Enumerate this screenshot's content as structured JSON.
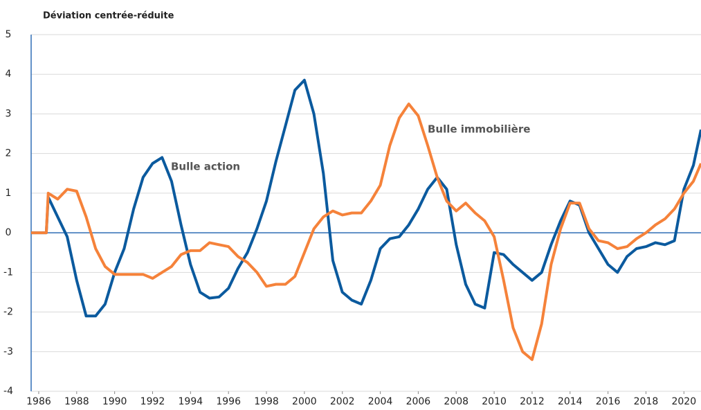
{
  "chart_data": {
    "type": "line",
    "title": "Déviation centrée-réduite",
    "annotations": [
      "Bulle action",
      "Bulle immobilière"
    ],
    "x": [
      1985.6,
      1986.4,
      1986.5,
      1987,
      1987.5,
      1988,
      1988.5,
      1989,
      1989.5,
      1990,
      1990.5,
      1991,
      1991.5,
      1992,
      1992.5,
      1993,
      1993.5,
      1994,
      1994.5,
      1995,
      1995.5,
      1996,
      1996.5,
      1997,
      1997.5,
      1998,
      1998.5,
      1999,
      1999.5,
      2000,
      2000.5,
      2001,
      2001.5,
      2002,
      2002.5,
      2003,
      2003.5,
      2004,
      2004.5,
      2005,
      2005.5,
      2006,
      2006.5,
      2007,
      2007.5,
      2008,
      2008.5,
      2009,
      2009.5,
      2010,
      2010.5,
      2011,
      2011.5,
      2012,
      2012.5,
      2013,
      2013.5,
      2014,
      2014.5,
      2015,
      2015.5,
      2016,
      2016.5,
      2017,
      2017.5,
      2018,
      2018.5,
      2019,
      2019.5,
      2020,
      2020.5,
      2020.9
    ],
    "series": [
      {
        "name": "Bulle action",
        "color": "#0b5a9e",
        "values": [
          0,
          0,
          0.9,
          0.4,
          -0.1,
          -1.2,
          -2.1,
          -2.1,
          -1.8,
          -1.0,
          -0.4,
          0.6,
          1.4,
          1.75,
          1.9,
          1.3,
          0.2,
          -0.8,
          -1.5,
          -1.65,
          -1.62,
          -1.4,
          -0.9,
          -0.5,
          0.1,
          0.8,
          1.8,
          2.7,
          3.6,
          3.85,
          3.0,
          1.5,
          -0.7,
          -1.5,
          -1.7,
          -1.8,
          -1.2,
          -0.4,
          -0.15,
          -0.1,
          0.2,
          0.6,
          1.1,
          1.4,
          1.1,
          -0.3,
          -1.3,
          -1.8,
          -1.9,
          -0.5,
          -0.55,
          -0.8,
          -1.0,
          -1.2,
          -1.0,
          -0.3,
          0.3,
          0.8,
          0.7,
          0.0,
          -0.4,
          -0.8,
          -1.0,
          -0.6,
          -0.4,
          -0.35,
          -0.25,
          -0.3,
          -0.2,
          1.1,
          1.7,
          2.6
        ]
      },
      {
        "name": "Bulle immobilière",
        "color": "#f5823a",
        "values": [
          0,
          0,
          1.0,
          0.85,
          1.1,
          1.05,
          0.4,
          -0.4,
          -0.85,
          -1.05,
          -1.05,
          -1.05,
          -1.05,
          -1.15,
          -1.0,
          -0.85,
          -0.55,
          -0.45,
          -0.45,
          -0.25,
          -0.3,
          -0.35,
          -0.6,
          -0.75,
          -1.0,
          -1.35,
          -1.3,
          -1.3,
          -1.1,
          -0.5,
          0.1,
          0.4,
          0.55,
          0.45,
          0.5,
          0.5,
          0.8,
          1.2,
          2.2,
          2.9,
          3.25,
          2.95,
          2.2,
          1.4,
          0.8,
          0.55,
          0.75,
          0.5,
          0.3,
          -0.1,
          -1.2,
          -2.4,
          -3.0,
          -3.2,
          -2.3,
          -0.8,
          0.1,
          0.75,
          0.75,
          0.1,
          -0.2,
          -0.25,
          -0.4,
          -0.35,
          -0.15,
          0.0,
          0.2,
          0.35,
          0.6,
          1.0,
          1.3,
          1.75
        ]
      }
    ],
    "xlim": [
      1985.6,
      2020.9
    ],
    "xticks": [
      1986,
      1988,
      1990,
      1992,
      1994,
      1996,
      1998,
      2000,
      2002,
      2004,
      2006,
      2008,
      2010,
      2012,
      2014,
      2016,
      2018,
      2020
    ],
    "ylim": [
      -4,
      5
    ],
    "yticks": [
      -4,
      -3,
      -2,
      -1,
      0,
      1,
      2,
      3,
      4,
      5
    ],
    "grid": true
  }
}
